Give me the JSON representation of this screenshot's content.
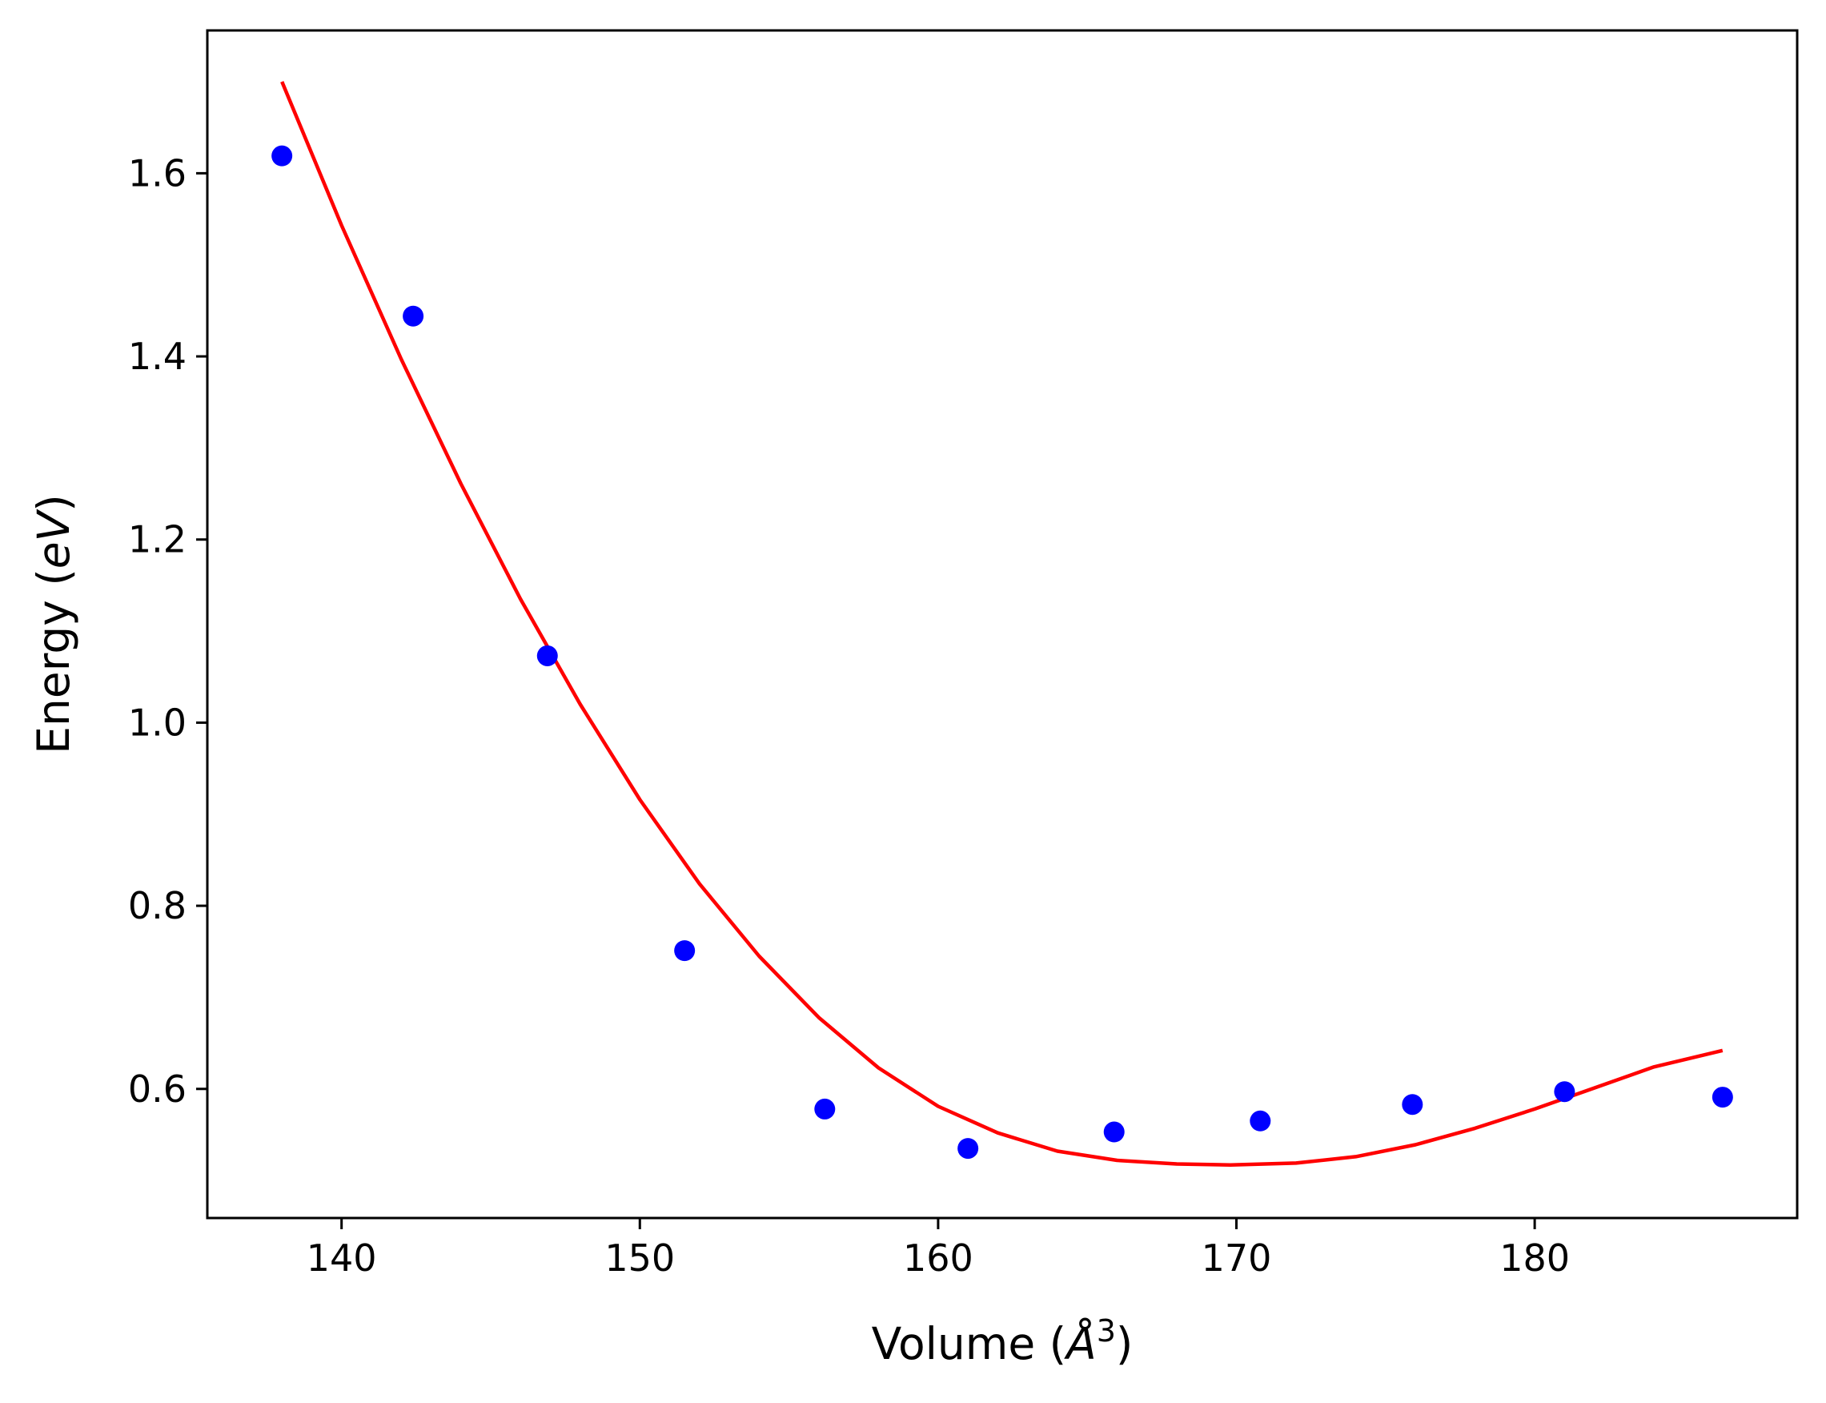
{
  "chart_data": {
    "type": "scatter",
    "title": "",
    "xlabel": {
      "prefix": "Volume (",
      "symbol": "Å",
      "superscript": "3",
      "suffix": ")"
    },
    "ylabel": {
      "prefix": "Energy (",
      "italic": "eV",
      "suffix": ")"
    },
    "xlim": [
      135.5,
      188.8
    ],
    "ylim": [
      0.459,
      1.756
    ],
    "xticks": [
      140,
      150,
      160,
      170,
      180
    ],
    "xtick_labels": [
      "140",
      "150",
      "160",
      "170",
      "180"
    ],
    "yticks": [
      0.6,
      0.8,
      1.0,
      1.2,
      1.4,
      1.6
    ],
    "ytick_labels": [
      "0.6",
      "0.8",
      "1.0",
      "1.2",
      "1.4",
      "1.6"
    ],
    "grid": false,
    "series": [
      {
        "kind": "points",
        "color": "#0000ff",
        "x": [
          138.0,
          142.4,
          146.9,
          151.5,
          156.2,
          161.0,
          165.9,
          170.8,
          175.9,
          181.0,
          186.3
        ],
        "y": [
          1.619,
          1.444,
          1.073,
          0.751,
          0.578,
          0.535,
          0.553,
          0.565,
          0.583,
          0.597,
          0.591
        ]
      },
      {
        "kind": "fit-line",
        "color": "#ff0000",
        "x": [
          138.0,
          140.0,
          142.0,
          144.0,
          146.0,
          148.0,
          150.0,
          152.0,
          154.0,
          156.0,
          158.0,
          160.0,
          162.0,
          164.0,
          166.0,
          168.0,
          169.8,
          172.0,
          174.0,
          176.0,
          178.0,
          180.0,
          182.0,
          184.0,
          186.3
        ],
        "y": [
          1.7,
          1.543,
          1.397,
          1.261,
          1.135,
          1.02,
          0.916,
          0.824,
          0.745,
          0.678,
          0.623,
          0.581,
          0.552,
          0.532,
          0.522,
          0.518,
          0.517,
          0.519,
          0.526,
          0.539,
          0.557,
          0.578,
          0.601,
          0.624,
          0.642
        ]
      }
    ]
  }
}
